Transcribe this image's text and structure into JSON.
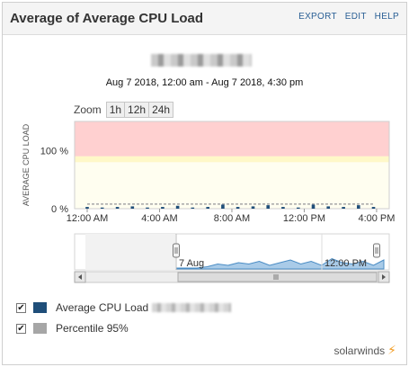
{
  "header": {
    "title": "Average of Average CPU Load",
    "actions": [
      "EXPORT",
      "EDIT",
      "HELP"
    ]
  },
  "date_range": "Aug 7 2018, 12:00 am - Aug 7 2018, 4:30 pm",
  "zoom": {
    "label": "Zoom",
    "options": [
      "1h",
      "12h",
      "24h"
    ]
  },
  "chart_data": {
    "type": "bar",
    "ylabel": "AVERAGE CPU LOAD",
    "yticks": [
      "100 %",
      "0 %"
    ],
    "xticks": [
      "12:00 AM",
      "4:00 AM",
      "8:00 AM",
      "12:00 PM",
      "4:00 PM"
    ],
    "ylim": [
      0,
      150
    ],
    "threshold_bands": [
      {
        "name": "critical",
        "from": 90,
        "to": 150,
        "color": "#ffd0d0"
      },
      {
        "name": "warning",
        "from": 80,
        "to": 90,
        "color": "#fff8c8"
      }
    ],
    "x_hours": [
      0.0,
      0.83,
      1.67,
      2.5,
      3.33,
      4.17,
      5.0,
      5.83,
      6.67,
      7.5,
      8.33,
      9.17,
      10.0,
      10.83,
      11.67,
      12.5,
      13.33,
      14.17,
      15.0,
      15.83
    ],
    "series": [
      {
        "name": "Average CPU Load",
        "color": "#1f4e79",
        "values": [
          3,
          2,
          3,
          4,
          2,
          3,
          5,
          2,
          3,
          7,
          3,
          4,
          6,
          3,
          2,
          7,
          4,
          3,
          6,
          3
        ]
      },
      {
        "name": "Percentile 95%",
        "color": "#a6a6a6",
        "values": [
          8,
          8,
          8,
          8,
          8,
          8,
          8,
          8,
          8,
          8,
          8,
          8,
          8,
          8,
          8,
          8,
          8,
          8,
          8,
          8
        ]
      }
    ],
    "navigator": {
      "labels": [
        "7 Aug",
        "12:00 PM"
      ],
      "series_values": [
        0,
        0,
        0,
        1,
        3,
        2,
        4,
        3,
        5,
        2,
        4,
        6,
        3,
        5,
        2,
        7,
        4,
        3,
        5,
        2,
        6
      ]
    }
  },
  "legend": [
    {
      "label": "Average CPU Load",
      "color": "#1f4e79"
    },
    {
      "label": "Percentile 95%",
      "color": "#a6a6a6"
    }
  ],
  "brand": "solarwinds"
}
